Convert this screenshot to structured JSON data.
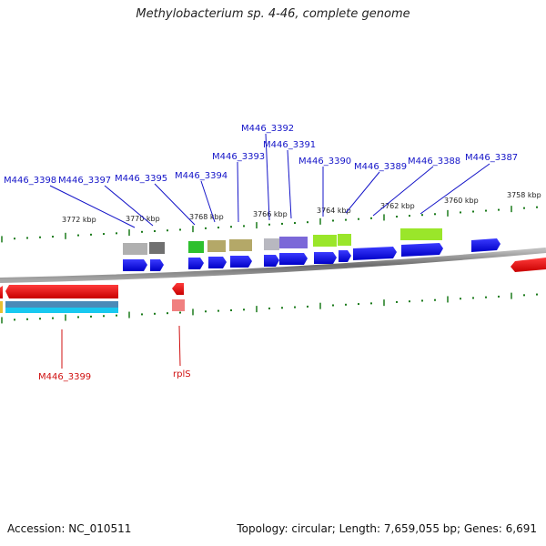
{
  "title": "Methylobacterium sp. 4-46, complete genome",
  "footer": {
    "accession": "Accession: NC_010511",
    "summary": "Topology: circular; Length: 7,659,055 bp; Genes: 6,691"
  },
  "scale_labels": [
    "3772 kbp",
    "3770 kbp",
    "3768 kbp",
    "3766 kbp",
    "3764 kbp",
    "3762 kbp",
    "3760 kbp",
    "3758 kbp"
  ],
  "top_gene_labels": [
    "M446_3398",
    "M446_3397",
    "M446_3395",
    "M446_3394",
    "M446_3393",
    "M446_3392",
    "M446_3391",
    "M446_3390",
    "M446_3389",
    "M446_3388",
    "M446_3387"
  ],
  "bottom_gene_labels": [
    "M446_3399",
    "rplS"
  ],
  "colors": {
    "forward_cds": "#1010e0",
    "reverse_cds": "#e01010",
    "top_label": "#1414c8",
    "bottom_label": "#d01010",
    "tick": "#1a7a1a",
    "backbone": "#808080"
  }
}
